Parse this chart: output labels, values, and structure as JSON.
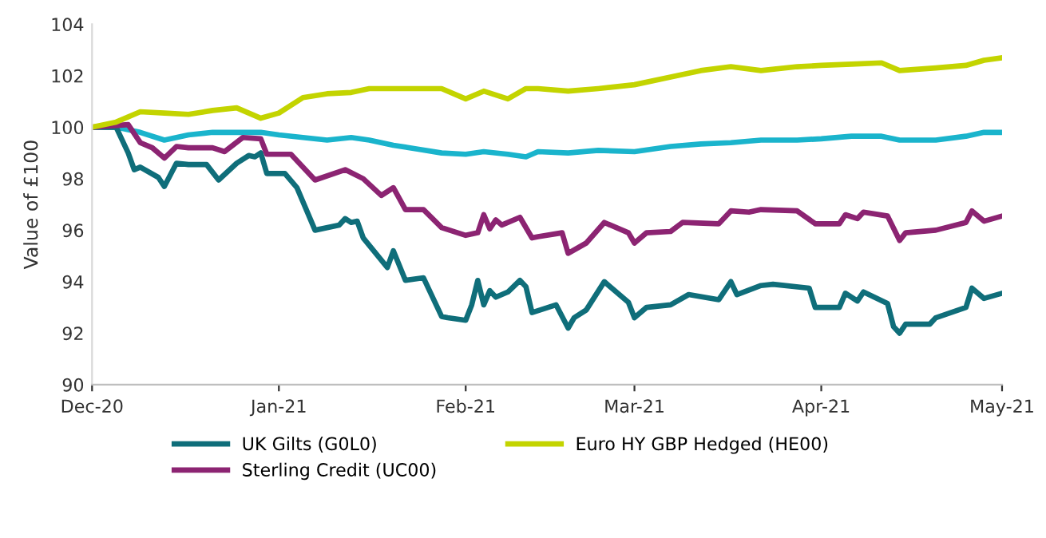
{
  "chart_data": {
    "type": "line",
    "ylabel": "Value of £100",
    "ylim": [
      90,
      104
    ],
    "yticks": [
      90,
      92,
      94,
      96,
      98,
      100,
      102,
      104
    ],
    "xlim": [
      "2020-12-01",
      "2021-05-01"
    ],
    "xticks": [
      {
        "value": "2020-12-01",
        "label": "Dec-20"
      },
      {
        "value": "2021-01-01",
        "label": "Jan-21"
      },
      {
        "value": "2021-02-01",
        "label": "Feb-21"
      },
      {
        "value": "2021-03-01",
        "label": "Mar-21"
      },
      {
        "value": "2021-04-01",
        "label": "Apr-21"
      },
      {
        "value": "2021-05-01",
        "label": "May-21"
      }
    ],
    "grid": false,
    "legend": "bottom",
    "marker": "none",
    "line_style": "solid",
    "series": [
      {
        "color": "#1ab4cc",
        "x": [
          "2020-12-01",
          "2020-12-05",
          "2020-12-09",
          "2020-12-13",
          "2020-12-17",
          "2020-12-21",
          "2020-12-25",
          "2020-12-29",
          "2021-01-01",
          "2021-01-05",
          "2021-01-09",
          "2021-01-13",
          "2021-01-16",
          "2021-01-20",
          "2021-01-24",
          "2021-01-28",
          "2021-02-01",
          "2021-02-04",
          "2021-02-08",
          "2021-02-11",
          "2021-02-13",
          "2021-02-18",
          "2021-02-23",
          "2021-03-01",
          "2021-03-07",
          "2021-03-12",
          "2021-03-17",
          "2021-03-22",
          "2021-03-28",
          "2021-04-01",
          "2021-04-06",
          "2021-04-11",
          "2021-04-14",
          "2021-04-20",
          "2021-04-25",
          "2021-04-28",
          "2021-05-01"
        ],
        "values": [
          100,
          100,
          99.8,
          99.5,
          99.7,
          99.8,
          99.8,
          99.8,
          99.7,
          99.6,
          99.5,
          99.6,
          99.5,
          99.3,
          99.15,
          99.0,
          98.95,
          99.05,
          98.95,
          98.85,
          99.05,
          99.0,
          99.1,
          99.05,
          99.25,
          99.35,
          99.4,
          99.5,
          99.5,
          99.55,
          99.65,
          99.65,
          99.5,
          99.5,
          99.65,
          99.8,
          99.8
        ]
      },
      {
        "name": "UK Gilts (G0L0)",
        "color": "#0f6e7a",
        "x": [
          "2020-12-01",
          "2020-12-05",
          "2020-12-07",
          "2020-12-08",
          "2020-12-09",
          "2020-12-12",
          "2020-12-13",
          "2020-12-15",
          "2020-12-17",
          "2020-12-20",
          "2020-12-22",
          "2020-12-25",
          "2020-12-27",
          "2020-12-28",
          "2020-12-29",
          "2020-12-30",
          "2021-01-02",
          "2021-01-04",
          "2021-01-07",
          "2021-01-11",
          "2021-01-12",
          "2021-01-13",
          "2021-01-14",
          "2021-01-15",
          "2021-01-19",
          "2021-01-20",
          "2021-01-22",
          "2021-01-25",
          "2021-01-28",
          "2021-01-29",
          "2021-02-01",
          "2021-02-02",
          "2021-02-03",
          "2021-02-04",
          "2021-02-05",
          "2021-02-06",
          "2021-02-08",
          "2021-02-10",
          "2021-02-11",
          "2021-02-12",
          "2021-02-16",
          "2021-02-18",
          "2021-02-19",
          "2021-02-21",
          "2021-02-24",
          "2021-02-28",
          "2021-03-01",
          "2021-03-03",
          "2021-03-07",
          "2021-03-10",
          "2021-03-15",
          "2021-03-17",
          "2021-03-18",
          "2021-03-22",
          "2021-03-24",
          "2021-03-30",
          "2021-03-31",
          "2021-04-04",
          "2021-04-05",
          "2021-04-07",
          "2021-04-08",
          "2021-04-12",
          "2021-04-13",
          "2021-04-14",
          "2021-04-15",
          "2021-04-19",
          "2021-04-20",
          "2021-04-25",
          "2021-04-26",
          "2021-04-28",
          "2021-05-01"
        ],
        "values": [
          100,
          100,
          99.0,
          98.35,
          98.45,
          98.05,
          97.7,
          98.6,
          98.55,
          98.55,
          97.95,
          98.6,
          98.9,
          98.85,
          99.0,
          98.2,
          98.2,
          97.65,
          96.0,
          96.2,
          96.45,
          96.3,
          96.35,
          95.7,
          94.55,
          95.2,
          94.05,
          94.15,
          92.65,
          92.6,
          92.5,
          93.1,
          94.05,
          93.1,
          93.65,
          93.4,
          93.6,
          94.05,
          93.8,
          92.8,
          93.1,
          92.2,
          92.6,
          92.9,
          94.0,
          93.2,
          92.6,
          93.0,
          93.1,
          93.5,
          93.3,
          94.0,
          93.5,
          93.85,
          93.9,
          93.75,
          93.0,
          93.0,
          93.55,
          93.25,
          93.6,
          93.15,
          92.25,
          92.0,
          92.35,
          92.35,
          92.6,
          93.0,
          93.75,
          93.35,
          93.55
        ]
      },
      {
        "name": "Sterling Credit (UC00)",
        "color": "#8c2472",
        "x": [
          "2020-12-01",
          "2020-12-07",
          "2020-12-09",
          "2020-12-11",
          "2020-12-13",
          "2020-12-15",
          "2020-12-17",
          "2020-12-21",
          "2020-12-23",
          "2020-12-26",
          "2020-12-29",
          "2020-12-30",
          "2021-01-03",
          "2021-01-07",
          "2021-01-12",
          "2021-01-15",
          "2021-01-18",
          "2021-01-20",
          "2021-01-22",
          "2021-01-25",
          "2021-01-28",
          "2021-02-01",
          "2021-02-03",
          "2021-02-04",
          "2021-02-05",
          "2021-02-06",
          "2021-02-07",
          "2021-02-10",
          "2021-02-12",
          "2021-02-13",
          "2021-02-17",
          "2021-02-18",
          "2021-02-21",
          "2021-02-24",
          "2021-02-28",
          "2021-03-01",
          "2021-03-03",
          "2021-03-07",
          "2021-03-09",
          "2021-03-15",
          "2021-03-17",
          "2021-03-20",
          "2021-03-22",
          "2021-03-28",
          "2021-03-31",
          "2021-04-04",
          "2021-04-05",
          "2021-04-07",
          "2021-04-08",
          "2021-04-12",
          "2021-04-14",
          "2021-04-15",
          "2021-04-20",
          "2021-04-25",
          "2021-04-26",
          "2021-04-28",
          "2021-05-01"
        ],
        "values": [
          100,
          100.1,
          99.4,
          99.2,
          98.8,
          99.25,
          99.2,
          99.2,
          99.05,
          99.6,
          99.55,
          98.95,
          98.95,
          97.95,
          98.35,
          98.0,
          97.35,
          97.65,
          96.8,
          96.8,
          96.1,
          95.8,
          95.9,
          96.6,
          96.05,
          96.4,
          96.2,
          96.5,
          95.7,
          95.75,
          95.9,
          95.1,
          95.5,
          96.3,
          95.9,
          95.5,
          95.9,
          95.95,
          96.3,
          96.25,
          96.75,
          96.7,
          96.8,
          96.75,
          96.25,
          96.25,
          96.6,
          96.45,
          96.7,
          96.55,
          95.6,
          95.9,
          96.0,
          96.3,
          96.75,
          96.35,
          96.55
        ]
      },
      {
        "name": "Euro HY GBP Hedged (HE00)",
        "color": "#c3d400",
        "x": [
          "2020-12-01",
          "2020-12-05",
          "2020-12-09",
          "2020-12-13",
          "2020-12-17",
          "2020-12-21",
          "2020-12-25",
          "2020-12-29",
          "2021-01-01",
          "2021-01-05",
          "2021-01-09",
          "2021-01-13",
          "2021-01-16",
          "2021-01-20",
          "2021-01-24",
          "2021-01-28",
          "2021-02-01",
          "2021-02-04",
          "2021-02-08",
          "2021-02-11",
          "2021-02-13",
          "2021-02-18",
          "2021-02-23",
          "2021-03-01",
          "2021-03-07",
          "2021-03-12",
          "2021-03-17",
          "2021-03-22",
          "2021-03-28",
          "2021-04-01",
          "2021-04-06",
          "2021-04-11",
          "2021-04-14",
          "2021-04-20",
          "2021-04-25",
          "2021-04-28",
          "2021-05-01"
        ],
        "values": [
          100,
          100.2,
          100.6,
          100.55,
          100.5,
          100.65,
          100.75,
          100.35,
          100.55,
          101.15,
          101.3,
          101.35,
          101.5,
          101.5,
          101.5,
          101.5,
          101.1,
          101.4,
          101.1,
          101.5,
          101.5,
          101.4,
          101.5,
          101.65,
          101.95,
          102.2,
          102.35,
          102.2,
          102.35,
          102.4,
          102.45,
          102.5,
          102.2,
          102.3,
          102.4,
          102.6,
          102.7
        ]
      }
    ]
  }
}
